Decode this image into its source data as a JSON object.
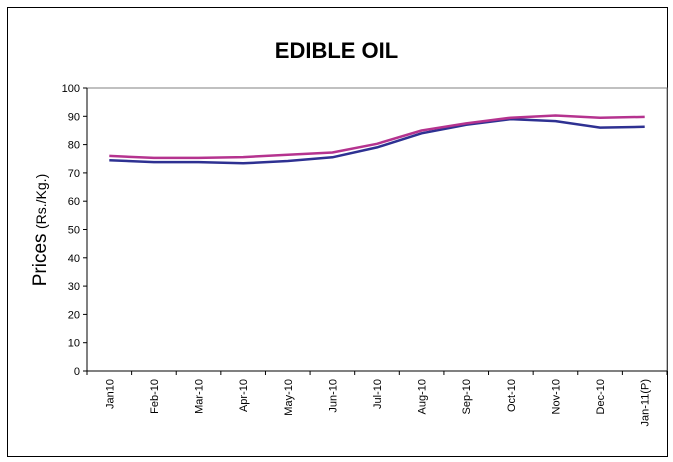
{
  "chart_data": {
    "type": "line",
    "title": "EDIBLE OIL",
    "ylabel_main": "Prices",
    "ylabel_unit": "(Rs./Kg.)",
    "xlabel": "",
    "categories": [
      "Jan10",
      "Feb-10",
      "Mar-10",
      "Apr-10",
      "May-10",
      "Jun-10",
      "Jul-10",
      "Aug-10",
      "Sep-10",
      "Oct-10",
      "Nov-10",
      "Dec-10",
      "Jan-11(P)"
    ],
    "ylim": [
      0,
      100
    ],
    "yticks": [
      0,
      10,
      20,
      30,
      40,
      50,
      60,
      70,
      80,
      90,
      100
    ],
    "grid": false,
    "legend": "none",
    "series": [
      {
        "color": "#2e3192",
        "values": [
          74.5,
          73.8,
          73.8,
          73.4,
          74.2,
          75.5,
          79,
          84,
          87,
          89,
          88.3,
          86,
          86.3
        ]
      },
      {
        "color": "#b5338f",
        "values": [
          76,
          75.3,
          75.3,
          75.6,
          76.4,
          77.2,
          80.3,
          85,
          87.5,
          89.5,
          90.3,
          89.5,
          89.8
        ]
      }
    ]
  }
}
